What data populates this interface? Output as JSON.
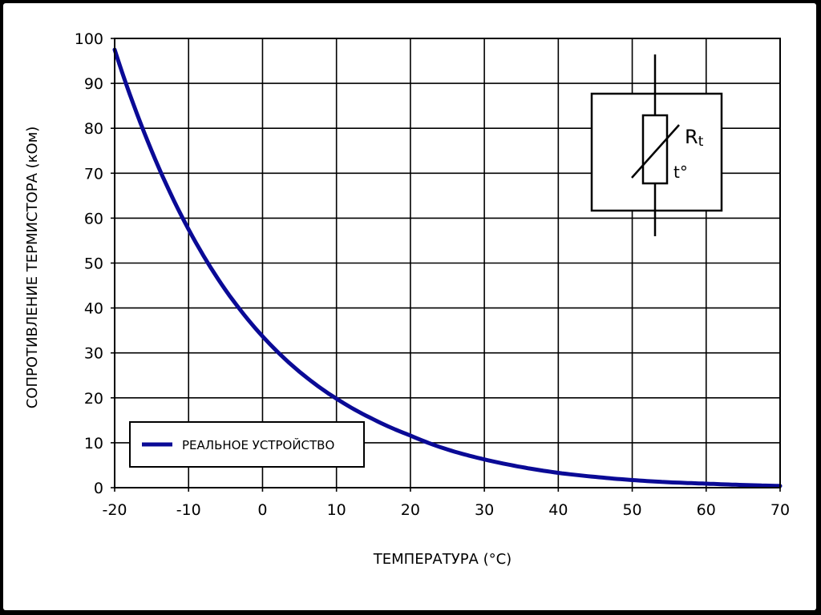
{
  "chart_data": {
    "type": "line",
    "xlabel": "ТЕМПЕРАТУРА (°C)",
    "ylabel": "СОПРОТИВЛЕНИЕ ТЕРМИСТОРА (кОм)",
    "xlim": [
      -20,
      70
    ],
    "ylim": [
      0,
      100
    ],
    "x_ticks": [
      "-20",
      "-10",
      "0",
      "10",
      "20",
      "30",
      "40",
      "50",
      "60",
      "70"
    ],
    "y_ticks": [
      "0",
      "10",
      "20",
      "30",
      "40",
      "50",
      "60",
      "70",
      "80",
      "90",
      "100"
    ],
    "grid": true,
    "legend_position": "bottom-left",
    "series": [
      {
        "name": "РЕАЛЬНОЕ УСТРОЙСТВО",
        "color": "#0a0a96",
        "x": [
          -20,
          -15,
          -10,
          -5,
          0,
          5,
          10,
          15,
          20,
          25,
          30,
          35,
          40,
          45,
          50,
          55,
          60,
          65,
          70
        ],
        "y": [
          97.5,
          75,
          57.5,
          44,
          33.7,
          25.8,
          19.8,
          15.2,
          11.6,
          8.5,
          6.3,
          4.6,
          3.3,
          2.4,
          1.7,
          1.2,
          0.9,
          0.6,
          0.4
        ]
      }
    ]
  },
  "symbol": {
    "label_r": "R",
    "label_r_sub": "t",
    "label_t": "t°"
  }
}
